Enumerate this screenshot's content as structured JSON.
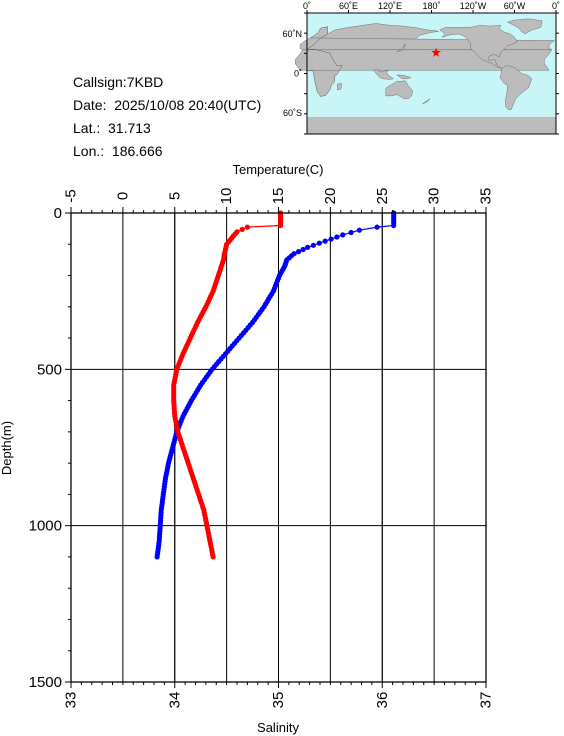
{
  "info": {
    "callsign": "Callsign:7KBD",
    "date": "Date:  2025/10/08 20:40(UTC)",
    "lat": "Lat.:  31.713",
    "lon": "Lon.:  186.666"
  },
  "map": {
    "lon_labels": [
      "0˚",
      "60˚E",
      "120˚E",
      "180˚",
      "120˚W",
      "60˚W",
      "0˚"
    ],
    "lat_labels": [
      "60˚N",
      "0˚",
      "60˚S"
    ],
    "ocean_color": "#c8f6f8",
    "land_color": "#bcbcbc",
    "marker_color": "#ff0000",
    "marker_icon": "star-icon",
    "station": {
      "lon": 186.666,
      "lat": 31.713
    }
  },
  "chart_data": {
    "type": "line",
    "title": "",
    "y_axis": {
      "label": "Depth(m)",
      "range": [
        0,
        1500
      ],
      "ticks": [
        0,
        500,
        1000,
        1500
      ],
      "inverted": true
    },
    "top_axis": {
      "label": "Temperature(C)",
      "range": [
        -5,
        35
      ],
      "ticks": [
        -5,
        0,
        5,
        10,
        15,
        20,
        25,
        30,
        35
      ]
    },
    "bottom_axis": {
      "label": "Salinity",
      "range": [
        33,
        37
      ],
      "ticks": [
        33,
        34,
        35,
        36,
        37
      ]
    },
    "grid": true,
    "series": [
      {
        "axis": "temperature",
        "color": "#0000ff",
        "depth": [
          0,
          20,
          40,
          45,
          55,
          70,
          90,
          110,
          130,
          150,
          170,
          200,
          250,
          300,
          350,
          400,
          450,
          500,
          550,
          600,
          650,
          700,
          750,
          800,
          850,
          900,
          950,
          1000,
          1050,
          1100
        ],
        "values": [
          26.1,
          26.1,
          26.1,
          24.5,
          22.8,
          21.2,
          19.5,
          17.8,
          16.5,
          15.8,
          15.6,
          15.1,
          14.5,
          13.6,
          12.5,
          11.2,
          9.9,
          8.6,
          7.5,
          6.6,
          5.8,
          5.2,
          4.8,
          4.4,
          4.1,
          3.9,
          3.7,
          3.6,
          3.5,
          3.3
        ]
      },
      {
        "axis": "salinity",
        "color": "#ff0000",
        "depth": [
          0,
          20,
          40,
          45,
          60,
          80,
          100,
          130,
          150,
          200,
          250,
          300,
          350,
          400,
          450,
          500,
          550,
          600,
          650,
          700,
          750,
          800,
          850,
          900,
          950,
          1000,
          1050,
          1100
        ],
        "values": [
          35.02,
          35.02,
          35.02,
          34.7,
          34.6,
          34.55,
          34.5,
          34.48,
          34.47,
          34.42,
          34.37,
          34.3,
          34.22,
          34.15,
          34.08,
          34.02,
          33.99,
          33.99,
          34.0,
          34.03,
          34.08,
          34.13,
          34.18,
          34.23,
          34.28,
          34.31,
          34.34,
          34.37
        ]
      }
    ]
  }
}
